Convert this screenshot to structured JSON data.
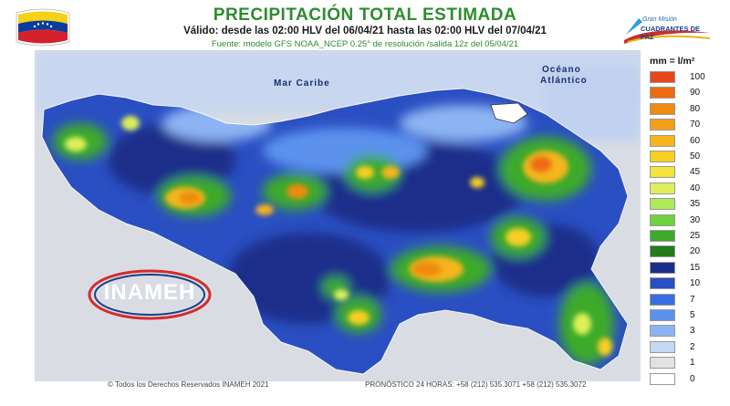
{
  "header": {
    "title": "PRECIPITACIÓN TOTAL ESTIMADA",
    "subtitle": "Válido: desde las 02:00 HLV del 06/04/21 hasta las 02:00 HLV del 07/04/21",
    "source": "Fuente: modelo GFS NOAA_NCEP 0.25° de resolución /salida 12z del 05/04/21"
  },
  "logos": {
    "right_top": "Gran Misión",
    "right_bottom": "CUADRANTES DE PAZ",
    "inameh": "INAMEH"
  },
  "map": {
    "sea_labels": [
      "Mar Caribe",
      "Océano",
      "Atlántico"
    ]
  },
  "legend": {
    "unit": "mm = l/m²",
    "items": [
      {
        "value": "100",
        "color": "#e8471b"
      },
      {
        "value": "90",
        "color": "#ee6a13"
      },
      {
        "value": "80",
        "color": "#f08a10"
      },
      {
        "value": "70",
        "color": "#f2a01a"
      },
      {
        "value": "60",
        "color": "#f5b51c"
      },
      {
        "value": "50",
        "color": "#f7cf22"
      },
      {
        "value": "45",
        "color": "#f4e53a"
      },
      {
        "value": "40",
        "color": "#ddf05a"
      },
      {
        "value": "35",
        "color": "#aee95a"
      },
      {
        "value": "30",
        "color": "#6fd23a"
      },
      {
        "value": "25",
        "color": "#3eaa2c"
      },
      {
        "value": "20",
        "color": "#237b1e"
      },
      {
        "value": "15",
        "color": "#1a2f8a"
      },
      {
        "value": "10",
        "color": "#2a4fc2"
      },
      {
        "value": "7",
        "color": "#3a6ee0"
      },
      {
        "value": "5",
        "color": "#5b92ee"
      },
      {
        "value": "3",
        "color": "#8cb4f2"
      },
      {
        "value": "2",
        "color": "#c4d8f6"
      },
      {
        "value": "1",
        "color": "#e2e2e2"
      },
      {
        "value": "0",
        "color": "#ffffff"
      }
    ]
  },
  "footer": {
    "copyright": "© Todos los Derechos Reservados INAMEH 2021",
    "forecast": "PRONÓSTICO 24 HORAS: +58 (212) 535.3071 +58 (212) 535.3072"
  }
}
